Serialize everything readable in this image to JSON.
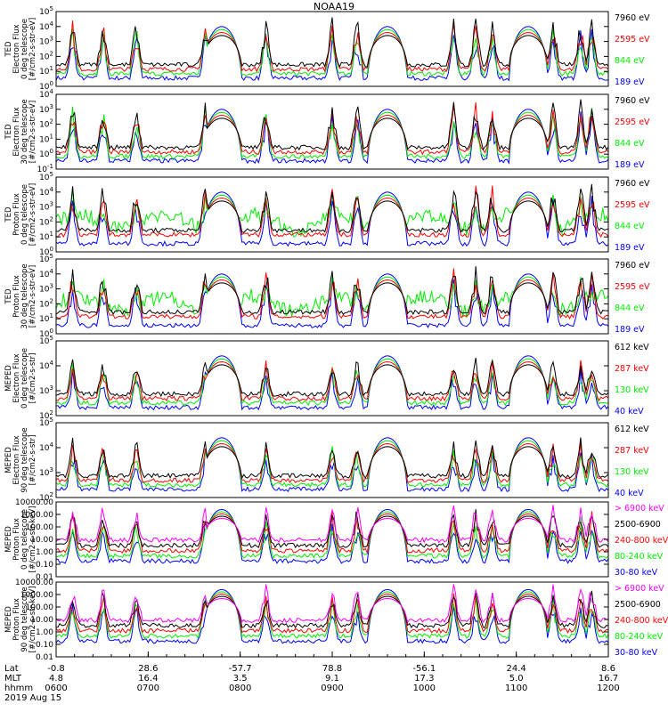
{
  "title": "NOAA19",
  "colors": {
    "black": "#000000",
    "red": "#ff0000",
    "green": "#00ee00",
    "blue": "#0000ff",
    "magenta": "#ff00ff"
  },
  "footer": {
    "axis_labels": [
      "Lat",
      "MLT",
      "hhmm"
    ],
    "date": "2019 Aug 15",
    "ticks": [
      {
        "lat": "-0.8",
        "mlt": "4.8",
        "hhmm": "0600"
      },
      {
        "lat": "28.6",
        "mlt": "16.4",
        "hhmm": "0700"
      },
      {
        "lat": "-57.7",
        "mlt": "3.5",
        "hhmm": "0800"
      },
      {
        "lat": "78.8",
        "mlt": "9.1",
        "hhmm": "0900"
      },
      {
        "lat": "-56.1",
        "mlt": "17.3",
        "hhmm": "1000"
      },
      {
        "lat": "24.4",
        "mlt": "5.0",
        "hhmm": "1100"
      },
      {
        "lat": "8.6",
        "mlt": "16.7",
        "hhmm": "1200"
      }
    ]
  },
  "chart_data": [
    {
      "type": "line",
      "ylabel": [
        "TED",
        "Electron Flux",
        "0 deg telescope",
        "[#/cm2-s-str-eV]"
      ],
      "yscale": "log",
      "ytick_labels": [
        "10^0",
        "10^1",
        "10^2",
        "10^3",
        "10^4",
        "10^5"
      ],
      "legend": [
        {
          "label": "7960 eV",
          "color": "#000000"
        },
        {
          "label": "2595 eV",
          "color": "#ff0000"
        },
        {
          "label": "844 eV",
          "color": "#00ee00"
        },
        {
          "label": "189 eV",
          "color": "#0000ff"
        }
      ]
    },
    {
      "type": "line",
      "ylabel": [
        "TED",
        "Electron Flux",
        "30 deg telescope",
        "[#/cm2-s-str-eV]"
      ],
      "yscale": "log",
      "ytick_labels": [
        "10^-1",
        "10^0",
        "10^1",
        "10^2",
        "10^3",
        "10^4"
      ],
      "legend": [
        {
          "label": "7960 eV",
          "color": "#000000"
        },
        {
          "label": "2595 eV",
          "color": "#ff0000"
        },
        {
          "label": "844 eV",
          "color": "#00ee00"
        },
        {
          "label": "189 eV",
          "color": "#0000ff"
        }
      ]
    },
    {
      "type": "line",
      "ylabel": [
        "TED",
        "Proton Flux",
        "0 deg telescope",
        "[#/cm2-s-str-eV]"
      ],
      "yscale": "log",
      "ytick_labels": [
        "10^0",
        "10^1",
        "10^2",
        "10^3",
        "10^4",
        "10^5"
      ],
      "legend": [
        {
          "label": "7960 eV",
          "color": "#000000"
        },
        {
          "label": "2595 eV",
          "color": "#ff0000"
        },
        {
          "label": "844 eV",
          "color": "#00ee00"
        },
        {
          "label": "189 eV",
          "color": "#0000ff"
        }
      ]
    },
    {
      "type": "line",
      "ylabel": [
        "TED",
        "Proton Flux",
        "30 deg telescope",
        "[#/cm2-s-str-eV]"
      ],
      "yscale": "log",
      "ytick_labels": [
        "10^0",
        "10^1",
        "10^2",
        "10^3",
        "10^4",
        "10^5"
      ],
      "legend": [
        {
          "label": "7960 eV",
          "color": "#000000"
        },
        {
          "label": "2595 eV",
          "color": "#ff0000"
        },
        {
          "label": "844 eV",
          "color": "#00ee00"
        },
        {
          "label": "189 eV",
          "color": "#0000ff"
        }
      ]
    },
    {
      "type": "line",
      "ylabel": [
        "MEPED",
        "Electron Flux",
        "0 deg telescope",
        "[#/cm2-s-str]"
      ],
      "yscale": "log",
      "ytick_labels": [
        "10^2",
        "10^3",
        "10^4",
        "10^5"
      ],
      "legend": [
        {
          "label": "612 keV",
          "color": "#000000"
        },
        {
          "label": "287 keV",
          "color": "#ff0000"
        },
        {
          "label": "130 keV",
          "color": "#00ee00"
        },
        {
          "label": "40 keV",
          "color": "#0000ff"
        }
      ]
    },
    {
      "type": "line",
      "ylabel": [
        "MEPED",
        "Electron Flux",
        "90 deg telescope",
        "[#/cm2-s-str]"
      ],
      "yscale": "log",
      "ytick_labels": [
        "10^2",
        "10^3",
        "10^4",
        "10^5"
      ],
      "legend": [
        {
          "label": "612 keV",
          "color": "#000000"
        },
        {
          "label": "287 keV",
          "color": "#ff0000"
        },
        {
          "label": "130 keV",
          "color": "#00ee00"
        },
        {
          "label": "40 keV",
          "color": "#0000ff"
        }
      ]
    },
    {
      "type": "line",
      "ylabel": [
        "MEPED",
        "Proton Flux",
        "0 deg telescope",
        "[#/cm2-s-str-keV]"
      ],
      "yscale": "log",
      "ytick_labels": [
        "0.01",
        "0.10",
        "1.00",
        "10.00",
        "100.00",
        "1000.00",
        "10000.00"
      ],
      "legend": [
        {
          "label": "> 6900 keV",
          "color": "#ff00ff"
        },
        {
          "label": "2500-6900",
          "color": "#000000"
        },
        {
          "label": "240-800 keV",
          "color": "#ff0000"
        },
        {
          "label": "80-240 keV",
          "color": "#00ee00"
        },
        {
          "label": "30-80 keV",
          "color": "#0000ff"
        }
      ]
    },
    {
      "type": "line",
      "ylabel": [
        "MEPED",
        "Proton Flux",
        "90 deg telescope",
        "[#/cm2-s-str-keV]"
      ],
      "yscale": "log",
      "ytick_labels": [
        "0.01",
        "0.10",
        "1.00",
        "10.00",
        "100.00",
        "1000.00",
        "10000.00"
      ],
      "legend": [
        {
          "label": "> 6900 keV",
          "color": "#ff00ff"
        },
        {
          "label": "2500-6900",
          "color": "#000000"
        },
        {
          "label": "240-800 keV",
          "color": "#ff0000"
        },
        {
          "label": "80-240 keV",
          "color": "#00ee00"
        },
        {
          "label": "30-80 keV",
          "color": "#0000ff"
        }
      ]
    }
  ]
}
